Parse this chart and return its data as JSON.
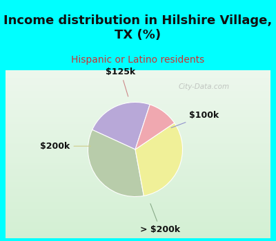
{
  "title": "Income distribution in Hilshire Village,\nTX (%)",
  "subtitle": "Hispanic or Latino residents",
  "labels": [
    "$100k",
    "> $200k",
    "$200k",
    "$125k"
  ],
  "sizes": [
    22,
    33,
    30,
    10
  ],
  "colors": [
    "#b8a8d8",
    "#b8ccaa",
    "#f0f098",
    "#f0a8b0"
  ],
  "title_fontsize": 13,
  "subtitle_fontsize": 10,
  "subtitle_color": "#cc3333",
  "title_color": "#111111",
  "bg_color": "#00ffff",
  "chart_bg_top": "#e8f8f0",
  "chart_bg_bottom": "#c8e8d8",
  "watermark": "City-Data.com",
  "label_color": "#111111",
  "label_fontsize": 9,
  "line_color_100k": "#9090cc",
  "line_color_200k_gt": "#88aa88",
  "line_color_200k": "#cccc88",
  "line_color_125k": "#cc8888"
}
